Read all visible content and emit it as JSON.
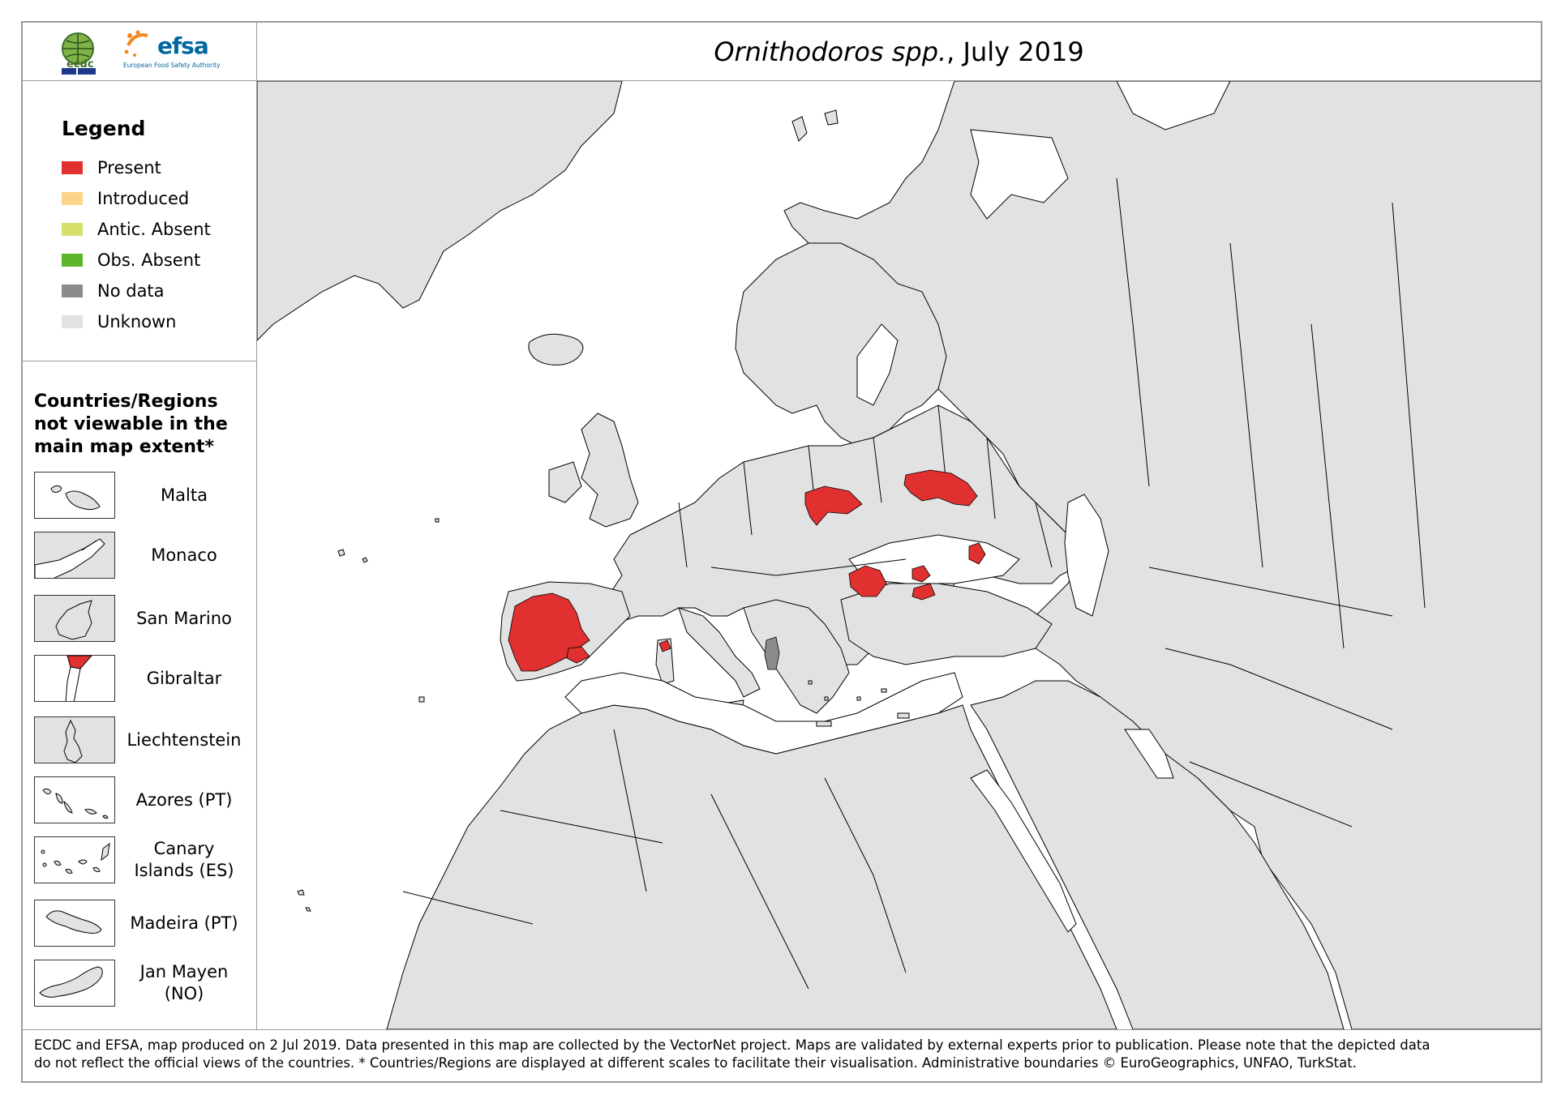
{
  "header": {
    "title_species": "Ornithodoros spp.",
    "title_rest": ", July 2019",
    "logos": {
      "ecdc_text": "ecdc",
      "efsa_text": "efsa",
      "efsa_subtitle": "European Food Safety Authority"
    }
  },
  "legend": {
    "title": "Legend",
    "items": [
      {
        "label": "Present",
        "color": "#e03030"
      },
      {
        "label": "Introduced",
        "color": "#fdd58a"
      },
      {
        "label": "Antic. Absent",
        "color": "#d4e06a"
      },
      {
        "label": "Obs. Absent",
        "color": "#5fb52a"
      },
      {
        "label": "No data",
        "color": "#8c8c8c"
      },
      {
        "label": "Unknown",
        "color": "#e2e2e2"
      }
    ]
  },
  "insets": {
    "heading": "Countries/Regions not viewable in the main map extent*",
    "items": [
      {
        "label": "Malta",
        "icon": "malta-inset-icon"
      },
      {
        "label": "Monaco",
        "icon": "monaco-inset-icon"
      },
      {
        "label": "San Marino",
        "icon": "san-marino-inset-icon"
      },
      {
        "label": "Gibraltar",
        "icon": "gibraltar-inset-icon"
      },
      {
        "label": "Liechtenstein",
        "icon": "liechtenstein-inset-icon"
      },
      {
        "label": "Azores (PT)",
        "icon": "azores-inset-icon"
      },
      {
        "label": "Canary Islands (ES)",
        "icon": "canary-islands-inset-icon"
      },
      {
        "label": "Madeira (PT)",
        "icon": "madeira-inset-icon"
      },
      {
        "label": "Jan Mayen (NO)",
        "icon": "jan-mayen-inset-icon"
      }
    ]
  },
  "map": {
    "colors": {
      "land": "#e2e2e2",
      "sea": "#ffffff",
      "present": "#e03030",
      "nodata": "#8c8c8c",
      "border": "#000000"
    },
    "present_regions": [
      "Portugal",
      "Spain (west & south)",
      "Sardinia",
      "Ukraine / Moldova",
      "Russia (south)",
      "Turkey",
      "Armenia / Azerbaijan"
    ],
    "no_data_regions": [
      "Albania"
    ]
  },
  "footer": {
    "line1": "ECDC and EFSA, map produced on 2 Jul 2019. Data presented in this map are collected by the VectorNet project. Maps are validated by external experts prior to publication. Please note that the depicted data",
    "line2": "do not reflect the official views of the countries. * Countries/Regions are displayed at different scales to facilitate their visualisation. Administrative boundaries © EuroGeographics, UNFAO, TurkStat."
  }
}
